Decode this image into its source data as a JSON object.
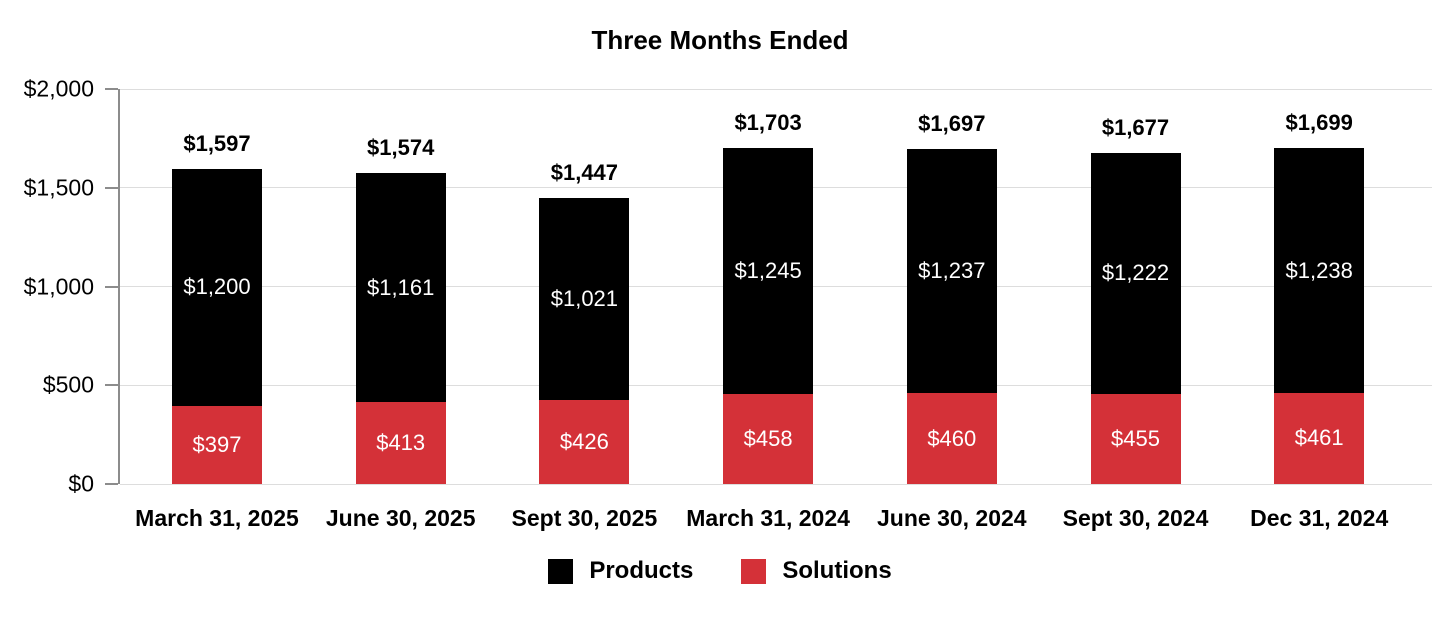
{
  "chart_data": {
    "type": "bar",
    "stacked": true,
    "title": "Three Months Ended",
    "categories": [
      "March 31, 2025",
      "June 30, 2025",
      "Sept 30, 2025",
      "March 31, 2024",
      "June 30, 2024",
      "Sept 30, 2024",
      "Dec 31, 2024"
    ],
    "series": [
      {
        "name": "Products",
        "color": "#000000",
        "values": [
          1200,
          1161,
          1021,
          1245,
          1237,
          1222,
          1238
        ],
        "labels": [
          "$1,200",
          "$1,161",
          "$1,021",
          "$1,245",
          "$1,237",
          "$1,222",
          "$1,238"
        ]
      },
      {
        "name": "Solutions",
        "color": "#d43138",
        "values": [
          397,
          413,
          426,
          458,
          460,
          455,
          461
        ],
        "labels": [
          "$397",
          "$413",
          "$426",
          "$458",
          "$460",
          "$455",
          "$461"
        ]
      }
    ],
    "stack_order_bottom_to_top": [
      "Solutions",
      "Products"
    ],
    "totals": {
      "values": [
        1597,
        1574,
        1447,
        1703,
        1697,
        1677,
        1699
      ],
      "labels": [
        "$1,597",
        "$1,574",
        "$1,447",
        "$1,703",
        "$1,697",
        "$1,677",
        "$1,699"
      ]
    },
    "y_axis": {
      "min": 0,
      "max": 2000,
      "tick_values": [
        0,
        500,
        1000,
        1500,
        2000
      ],
      "tick_labels": [
        "$0",
        "$500",
        "$1,000",
        "$1,500",
        "$2,000"
      ]
    },
    "legend": {
      "position": "bottom",
      "items": [
        {
          "label": "Products",
          "color": "#000000"
        },
        {
          "label": "Solutions",
          "color": "#d43138"
        }
      ]
    },
    "grid": true
  }
}
